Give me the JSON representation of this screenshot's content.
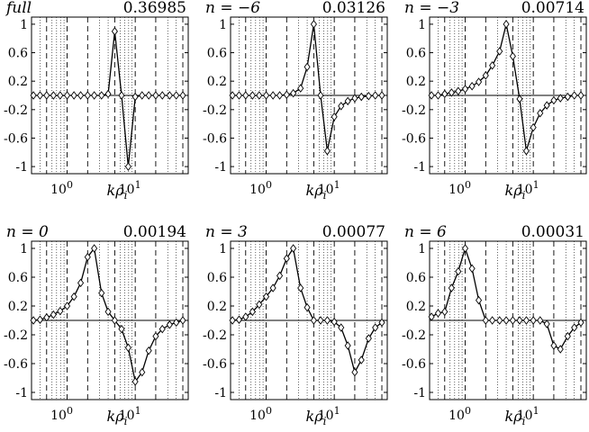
{
  "chart_data": [
    {
      "type": "line",
      "title": "full",
      "title_italic": true,
      "value_label": "0.36985",
      "xlabel_base": "kρ",
      "xlabel_sub": "i",
      "x_tick_labels": [
        {
          "base": "10",
          "exp": "0",
          "x": 1
        },
        {
          "base": "10",
          "exp": "1",
          "x": 10
        }
      ],
      "y_tick_labels": [
        "1",
        "0.6",
        "0.2",
        "-0.2",
        "-0.6",
        "-1"
      ],
      "xscale": "log",
      "xlim": [
        0.3,
        60
      ],
      "ylim": [
        -1.1,
        1.1
      ],
      "grid": "x-dashed-dotted",
      "series": [
        {
          "x": [
            0.32,
            0.4,
            0.5,
            0.63,
            0.79,
            1.0,
            1.26,
            1.58,
            2.0,
            2.5,
            3.2,
            4.0,
            5.0,
            6.3,
            7.9,
            10,
            12.6,
            15.8,
            20,
            25,
            32,
            40,
            50
          ],
          "y": [
            0.0,
            0.0,
            0.0,
            0.0,
            0.0,
            0.0,
            0.0,
            0.0,
            0.0,
            0.0,
            0.0,
            0.02,
            0.9,
            0.0,
            -1.0,
            -0.02,
            0.0,
            0.0,
            0.0,
            0.0,
            0.0,
            0.0,
            0.0
          ]
        }
      ]
    },
    {
      "type": "line",
      "title": "n = −6",
      "title_italic": true,
      "value_label": "0.03126",
      "xlabel_base": "kρ",
      "xlabel_sub": "i",
      "x_tick_labels": [
        {
          "base": "10",
          "exp": "0",
          "x": 1
        },
        {
          "base": "10",
          "exp": "1",
          "x": 10
        }
      ],
      "y_tick_labels": [
        "1",
        "0.6",
        "0.2",
        "-0.2",
        "-0.6",
        "-1"
      ],
      "xscale": "log",
      "xlim": [
        0.3,
        60
      ],
      "ylim": [
        -1.1,
        1.1
      ],
      "grid": "x-dashed-dotted",
      "series": [
        {
          "x": [
            0.32,
            0.4,
            0.5,
            0.63,
            0.79,
            1.0,
            1.26,
            1.58,
            2.0,
            2.5,
            3.2,
            4.0,
            5.0,
            6.3,
            7.9,
            10,
            12.6,
            15.8,
            20,
            25,
            32,
            40,
            50
          ],
          "y": [
            0.0,
            0.0,
            0.0,
            0.0,
            0.0,
            0.0,
            0.0,
            0.0,
            0.01,
            0.03,
            0.1,
            0.4,
            1.0,
            0.0,
            -0.78,
            -0.3,
            -0.15,
            -0.08,
            -0.04,
            -0.02,
            -0.01,
            0.0,
            0.0
          ]
        }
      ]
    },
    {
      "type": "line",
      "title": "n = −3",
      "title_italic": true,
      "value_label": "0.00714",
      "xlabel_base": "kρ",
      "xlabel_sub": "i",
      "x_tick_labels": [
        {
          "base": "10",
          "exp": "0",
          "x": 1
        },
        {
          "base": "10",
          "exp": "1",
          "x": 10
        }
      ],
      "y_tick_labels": [
        "1",
        "0.6",
        "0.2",
        "-0.2",
        "-0.6",
        "-1"
      ],
      "xscale": "log",
      "xlim": [
        0.3,
        60
      ],
      "ylim": [
        -1.1,
        1.1
      ],
      "grid": "x-dashed-dotted",
      "series": [
        {
          "x": [
            0.32,
            0.4,
            0.5,
            0.63,
            0.79,
            1.0,
            1.26,
            1.58,
            2.0,
            2.5,
            3.2,
            4.0,
            5.0,
            6.3,
            7.9,
            10,
            12.6,
            15.8,
            20,
            25,
            32,
            40,
            50
          ],
          "y": [
            0.0,
            0.0,
            0.02,
            0.04,
            0.06,
            0.09,
            0.13,
            0.19,
            0.28,
            0.42,
            0.62,
            1.0,
            0.55,
            -0.05,
            -0.78,
            -0.45,
            -0.25,
            -0.14,
            -0.07,
            -0.04,
            -0.02,
            0.0,
            0.0
          ]
        }
      ]
    },
    {
      "type": "line",
      "title": "n = 0",
      "title_italic": true,
      "value_label": "0.00194",
      "xlabel_base": "kρ",
      "xlabel_sub": "i",
      "x_tick_labels": [
        {
          "base": "10",
          "exp": "0",
          "x": 1
        },
        {
          "base": "10",
          "exp": "1",
          "x": 10
        }
      ],
      "y_tick_labels": [
        "1",
        "0.6",
        "0.2",
        "-0.2",
        "-0.6",
        "-1"
      ],
      "xscale": "log",
      "xlim": [
        0.3,
        60
      ],
      "ylim": [
        -1.1,
        1.1
      ],
      "grid": "x-dashed-dotted",
      "series": [
        {
          "x": [
            0.32,
            0.4,
            0.5,
            0.63,
            0.79,
            1.0,
            1.26,
            1.58,
            2.0,
            2.5,
            3.2,
            4.0,
            5.0,
            6.3,
            7.9,
            10,
            12.6,
            15.8,
            20,
            25,
            32,
            40,
            50
          ],
          "y": [
            0.0,
            0.01,
            0.04,
            0.08,
            0.13,
            0.2,
            0.33,
            0.52,
            0.88,
            1.0,
            0.38,
            0.12,
            0.0,
            -0.12,
            -0.38,
            -0.85,
            -0.72,
            -0.42,
            -0.22,
            -0.12,
            -0.06,
            -0.03,
            0.0
          ]
        }
      ]
    },
    {
      "type": "line",
      "title": "n = 3",
      "title_italic": true,
      "value_label": "0.00077",
      "xlabel_base": "kρ",
      "xlabel_sub": "i",
      "x_tick_labels": [
        {
          "base": "10",
          "exp": "0",
          "x": 1
        },
        {
          "base": "10",
          "exp": "1",
          "x": 10
        }
      ],
      "y_tick_labels": [
        "1",
        "0.6",
        "0.2",
        "-0.2",
        "-0.6",
        "-1"
      ],
      "xscale": "log",
      "xlim": [
        0.3,
        60
      ],
      "ylim": [
        -1.1,
        1.1
      ],
      "grid": "x-dashed-dotted",
      "series": [
        {
          "x": [
            0.32,
            0.4,
            0.5,
            0.63,
            0.79,
            1.0,
            1.26,
            1.58,
            2.0,
            2.5,
            3.2,
            4.0,
            5.0,
            6.3,
            7.9,
            10,
            12.6,
            15.8,
            20,
            25,
            32,
            40,
            50
          ],
          "y": [
            0.0,
            0.01,
            0.05,
            0.12,
            0.22,
            0.33,
            0.45,
            0.62,
            0.86,
            1.0,
            0.45,
            0.18,
            0.0,
            0.0,
            0.0,
            -0.02,
            -0.1,
            -0.35,
            -0.72,
            -0.55,
            -0.25,
            -0.1,
            -0.03
          ]
        }
      ]
    },
    {
      "type": "line",
      "title": "n = 6",
      "title_italic": true,
      "value_label": "0.00031",
      "xlabel_base": "kρ",
      "xlabel_sub": "i",
      "x_tick_labels": [
        {
          "base": "10",
          "exp": "0",
          "x": 1
        },
        {
          "base": "10",
          "exp": "1",
          "x": 10
        }
      ],
      "y_tick_labels": [
        "1",
        "0.6",
        "0.2",
        "-0.2",
        "-0.6",
        "-1"
      ],
      "xscale": "log",
      "xlim": [
        0.3,
        60
      ],
      "ylim": [
        -1.1,
        1.1
      ],
      "grid": "x-dashed-dotted",
      "series": [
        {
          "x": [
            0.32,
            0.4,
            0.5,
            0.63,
            0.79,
            1.0,
            1.26,
            1.58,
            2.0,
            2.5,
            3.2,
            4.0,
            5.0,
            6.3,
            7.9,
            10,
            12.6,
            15.8,
            20,
            25,
            32,
            40,
            50
          ],
          "y": [
            0.05,
            0.1,
            0.12,
            0.45,
            0.68,
            1.0,
            0.72,
            0.28,
            0.0,
            0.0,
            0.0,
            0.0,
            0.0,
            0.0,
            0.0,
            0.0,
            0.0,
            -0.05,
            -0.35,
            -0.4,
            -0.22,
            -0.1,
            -0.03
          ]
        }
      ]
    }
  ],
  "style": {
    "line_color": "#000000",
    "marker": "diamond",
    "marker_fill": "#ffffff",
    "background": "#ffffff"
  }
}
